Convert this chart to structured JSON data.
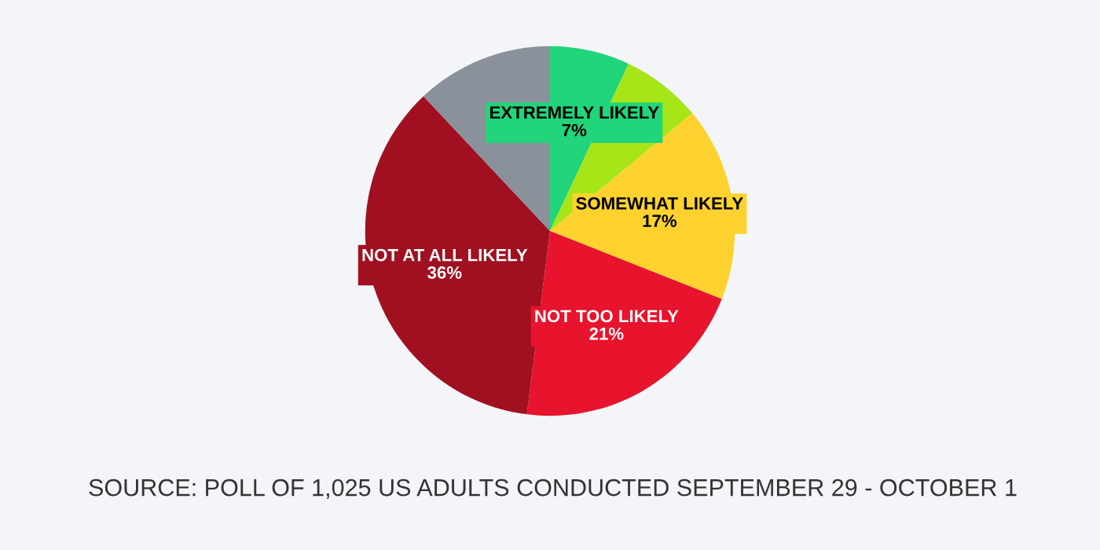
{
  "chart_data": {
    "type": "pie",
    "categories": [
      "EXTREMELY LIKELY",
      null,
      "SOMEWHAT LIKELY",
      "NOT TOO LIKELY",
      "NOT AT ALL LIKELY",
      null
    ],
    "values": [
      7,
      7,
      17,
      21,
      36,
      12
    ],
    "colors": [
      "#22d47a",
      "#a6e619",
      "#fed22e",
      "#e8132c",
      "#a01020",
      "#8a919b"
    ],
    "value_labels": [
      "7%",
      null,
      "17%",
      "21%",
      "36%",
      null
    ],
    "annotations": [
      "SOURCE: POLL OF 1,025 US ADULTS CONDUCTED SEPTEMBER 29 - OCTOBER 1"
    ]
  }
}
